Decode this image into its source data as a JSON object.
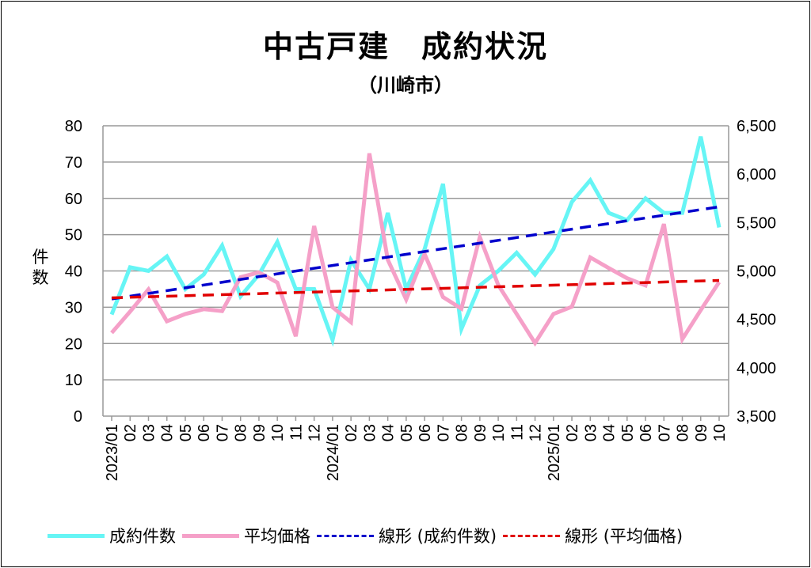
{
  "chart_data": {
    "type": "line",
    "title": "中古戸建　成約状況",
    "subtitle": "（川崎市）",
    "ylabel": "件数",
    "ylim": [
      0,
      80
    ],
    "yticks": [
      "0",
      "10",
      "20",
      "30",
      "40",
      "50",
      "60",
      "70",
      "80"
    ],
    "y2lim": [
      3500,
      6500
    ],
    "y2ticks": [
      "3,500",
      "4,000",
      "4,500",
      "5,000",
      "5,500",
      "6,000",
      "6,500"
    ],
    "grid": true,
    "legend_position": "bottom",
    "categories": [
      "2023/01",
      "02",
      "03",
      "04",
      "05",
      "06",
      "07",
      "08",
      "09",
      "10",
      "11",
      "12",
      "2024/01",
      "02",
      "03",
      "04",
      "05",
      "06",
      "07",
      "08",
      "09",
      "10",
      "11",
      "12",
      "2025/01",
      "02",
      "03",
      "04",
      "05",
      "06",
      "07",
      "08",
      "09",
      "10"
    ],
    "series": [
      {
        "name": "成約件数",
        "axis": "left",
        "color": "#66f5f5",
        "values": [
          28,
          41,
          40,
          44,
          35,
          39,
          47,
          33,
          39,
          48,
          35,
          35,
          21,
          43,
          35,
          56,
          35,
          46,
          64,
          24,
          36,
          40,
          45,
          39,
          46,
          59,
          65,
          56,
          54,
          60,
          56,
          56,
          77,
          52
        ]
      },
      {
        "name": "平均価格",
        "axis": "right",
        "color": "#f5a0c8",
        "values": [
          4360,
          4580,
          4810,
          4480,
          4555,
          4605,
          4585,
          4935,
          4985,
          4880,
          4325,
          5465,
          4625,
          4470,
          6215,
          5115,
          4705,
          5175,
          4730,
          4610,
          5350,
          4855,
          4555,
          4255,
          4555,
          4630,
          5140,
          5030,
          4925,
          4850,
          5485,
          4295,
          4595,
          4885
        ]
      }
    ],
    "trendlines": [
      {
        "name": "線形 (成約件数)",
        "of": "成約件数",
        "color": "#0000cc"
      },
      {
        "name": "線形 (平均価格)",
        "of": "平均価格",
        "color": "#e00000"
      }
    ]
  }
}
